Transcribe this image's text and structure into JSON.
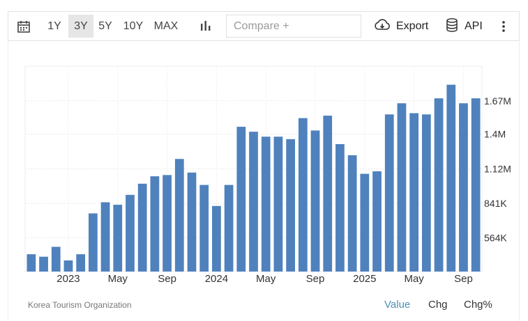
{
  "toolbar": {
    "ranges": [
      "1Y",
      "3Y",
      "5Y",
      "10Y",
      "MAX"
    ],
    "active_range": "3Y",
    "compare_placeholder": "Compare +",
    "export_label": "Export",
    "api_label": "API"
  },
  "icons": {
    "calendar": "calendar-icon",
    "chart_type": "bar-chart-icon",
    "export": "cloud-download-icon",
    "api": "database-icon",
    "more": "more-vertical-icon"
  },
  "colors": {
    "bar": "#4f81bd",
    "active_mode": "#4a90b8",
    "active_range_bg": "#e6e6e6"
  },
  "footer": {
    "source": "Korea Tourism Organization",
    "modes": [
      "Value",
      "Chg",
      "Chg%"
    ],
    "active_mode": "Value"
  },
  "chart_data": {
    "type": "bar",
    "title": "",
    "xlabel": "",
    "ylabel": "",
    "categories": [
      "2022-10",
      "2022-11",
      "2022-12",
      "2023-01",
      "2023-02",
      "2023-03",
      "2023-04",
      "2023-05",
      "2023-06",
      "2023-07",
      "2023-08",
      "2023-09",
      "2023-10",
      "2023-11",
      "2023-12",
      "2024-01",
      "2024-02",
      "2024-03",
      "2024-04",
      "2024-05",
      "2024-06",
      "2024-07",
      "2024-08",
      "2024-09",
      "2024-10",
      "2024-11",
      "2024-12",
      "2025-01",
      "2025-02",
      "2025-03",
      "2025-04",
      "2025-05",
      "2025-06",
      "2025-07",
      "2025-08",
      "2025-09",
      "2025-10"
    ],
    "values": [
      430000,
      410000,
      490000,
      380000,
      430000,
      760000,
      850000,
      830000,
      910000,
      1000000,
      1060000,
      1070000,
      1200000,
      1090000,
      990000,
      820000,
      990000,
      1460000,
      1420000,
      1380000,
      1380000,
      1360000,
      1530000,
      1430000,
      1550000,
      1320000,
      1230000,
      1080000,
      1100000,
      1560000,
      1650000,
      1570000,
      1560000,
      1690000,
      1800000,
      1650000,
      1690000
    ],
    "y_ticks": [
      {
        "value": 564000,
        "label": "564K"
      },
      {
        "value": 841000,
        "label": "841K"
      },
      {
        "value": 1120000,
        "label": "1.12M"
      },
      {
        "value": 1400000,
        "label": "1.4M"
      },
      {
        "value": 1670000,
        "label": "1.67M"
      }
    ],
    "x_ticks": [
      {
        "category": "2023-01",
        "label": "2023"
      },
      {
        "category": "2023-05",
        "label": "May"
      },
      {
        "category": "2023-09",
        "label": "Sep"
      },
      {
        "category": "2024-01",
        "label": "2024"
      },
      {
        "category": "2024-05",
        "label": "May"
      },
      {
        "category": "2024-09",
        "label": "Sep"
      },
      {
        "category": "2025-01",
        "label": "2025"
      },
      {
        "category": "2025-05",
        "label": "May"
      },
      {
        "category": "2025-09",
        "label": "Sep"
      }
    ],
    "ylim": [
      290000,
      1950000
    ],
    "grid": true,
    "y_axis_side": "right"
  }
}
